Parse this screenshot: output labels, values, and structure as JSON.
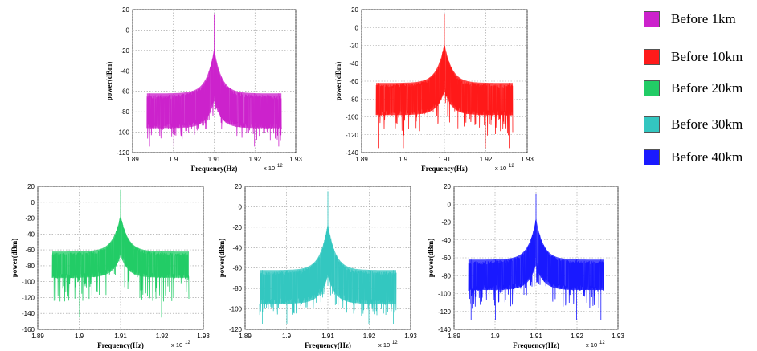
{
  "chart_data": [
    {
      "type": "line",
      "name": "Before 1km",
      "color": "#cc22cc",
      "xlabel": "Frequency(Hz)",
      "ylabel": "power(dBm)",
      "x_scale_label": "x 10",
      "x_scale_exp": "12",
      "xlim": [
        1.89,
        1.93
      ],
      "ylim": [
        -120,
        20
      ],
      "xticks": [
        "1.89",
        "1.9",
        "1.91",
        "1.92",
        "1.93"
      ],
      "xtick_values": [
        1.89,
        1.9,
        1.91,
        1.92,
        1.93
      ],
      "yticks": [
        20,
        0,
        -20,
        -40,
        -60,
        -80,
        -100,
        -120
      ],
      "x_start": 1.8935,
      "x_end": 1.9265,
      "center": 1.91,
      "peak_dbm": 15,
      "shoulder_dbm": -18,
      "band_top_dbm": -62,
      "band_bottom_dbm": -96,
      "floor_min_dbm": -114
    },
    {
      "type": "line",
      "name": "Before 10km",
      "color": "#ff1a1a",
      "xlabel": "Frequency(Hz)",
      "ylabel": "power(dBm)",
      "x_scale_label": "x 10",
      "x_scale_exp": "12",
      "xlim": [
        1.89,
        1.93
      ],
      "ylim": [
        -140,
        20
      ],
      "xticks": [
        "1.89",
        "1.9",
        "1.91",
        "1.92",
        "1.93"
      ],
      "xtick_values": [
        1.89,
        1.9,
        1.91,
        1.92,
        1.93
      ],
      "yticks": [
        20,
        0,
        -20,
        -40,
        -60,
        -80,
        -100,
        -120,
        -140
      ],
      "x_start": 1.8935,
      "x_end": 1.9265,
      "center": 1.91,
      "peak_dbm": 15,
      "shoulder_dbm": -18,
      "band_top_dbm": -62,
      "band_bottom_dbm": -98,
      "floor_min_dbm": -135
    },
    {
      "type": "line",
      "name": "Before 20km",
      "color": "#22cc66",
      "xlabel": "Frequency(Hz)",
      "ylabel": "power(dBm)",
      "x_scale_label": "x 10",
      "x_scale_exp": "12",
      "xlim": [
        1.89,
        1.93
      ],
      "ylim": [
        -160,
        20
      ],
      "xticks": [
        "1.89",
        "1.9",
        "1.91",
        "1.92",
        "1.93"
      ],
      "xtick_values": [
        1.89,
        1.9,
        1.91,
        1.92,
        1.93
      ],
      "yticks": [
        20,
        0,
        -20,
        -40,
        -60,
        -80,
        -100,
        -120,
        -140,
        -160
      ],
      "x_start": 1.8935,
      "x_end": 1.9265,
      "center": 1.91,
      "peak_dbm": 15,
      "shoulder_dbm": -16,
      "band_top_dbm": -62,
      "band_bottom_dbm": -95,
      "floor_min_dbm": -145
    },
    {
      "type": "line",
      "name": "Before 30km",
      "color": "#33c6c0",
      "xlabel": "Frequency(Hz)",
      "ylabel": "power(dBm)",
      "x_scale_label": "x 10",
      "x_scale_exp": "12",
      "xlim": [
        1.89,
        1.93
      ],
      "ylim": [
        -120,
        20
      ],
      "xticks": [
        "1.89",
        "1.9",
        "1.91",
        "1.92",
        "1.93"
      ],
      "xtick_values": [
        1.89,
        1.9,
        1.91,
        1.92,
        1.93
      ],
      "yticks": [
        20,
        0,
        -20,
        -40,
        -60,
        -80,
        -100,
        -120
      ],
      "x_start": 1.8935,
      "x_end": 1.9265,
      "center": 1.91,
      "peak_dbm": 15,
      "shoulder_dbm": -16,
      "band_top_dbm": -62,
      "band_bottom_dbm": -95,
      "floor_min_dbm": -115
    },
    {
      "type": "line",
      "name": "Before 40km",
      "color": "#1a1aff",
      "xlabel": "Frequency(Hz)",
      "ylabel": "power(dBm)",
      "x_scale_label": "x 10",
      "x_scale_exp": "12",
      "xlim": [
        1.89,
        1.93
      ],
      "ylim": [
        -140,
        20
      ],
      "xticks": [
        "1.89",
        "1.9",
        "1.91",
        "1.92",
        "1.93"
      ],
      "xtick_values": [
        1.89,
        1.9,
        1.91,
        1.92,
        1.93
      ],
      "yticks": [
        20,
        0,
        -20,
        -40,
        -60,
        -80,
        -100,
        -120,
        -140
      ],
      "x_start": 1.8935,
      "x_end": 1.9265,
      "center": 1.91,
      "peak_dbm": 12,
      "shoulder_dbm": -16,
      "band_top_dbm": -62,
      "band_bottom_dbm": -96,
      "floor_min_dbm": -130
    }
  ],
  "legend": {
    "items": [
      {
        "label": " Before 1km",
        "color": "#cc22cc"
      },
      {
        "label": "Before 10km",
        "color": "#ff1a1a"
      },
      {
        "label": "Before 20km",
        "color": "#22cc66"
      },
      {
        "label": "Before 30km",
        "color": "#33c6c0"
      },
      {
        "label": "Before 40km",
        "color": "#1a1aff"
      }
    ]
  }
}
